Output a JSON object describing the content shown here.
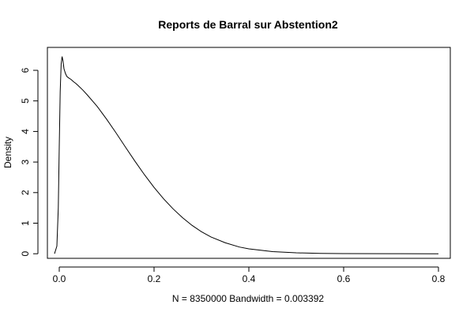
{
  "chart_data": {
    "type": "line",
    "title": "Reports de Barral sur Abstention2",
    "xlabel": "N = 8350000   Bandwidth = 0.003392",
    "ylabel": "Density",
    "xlim": [
      -0.025,
      0.825
    ],
    "ylim": [
      -0.15,
      6.75
    ],
    "x_ticks": [
      0.0,
      0.2,
      0.4,
      0.6,
      0.8
    ],
    "x_tick_labels": [
      "0.0",
      "0.2",
      "0.4",
      "0.6",
      "0.8"
    ],
    "y_ticks": [
      0,
      1,
      2,
      3,
      4,
      5,
      6
    ],
    "y_tick_labels": [
      "0",
      "1",
      "2",
      "3",
      "4",
      "5",
      "6"
    ],
    "grid": false,
    "series": [
      {
        "x": [
          -0.01,
          -0.005,
          -0.002,
          0.0,
          0.002,
          0.004,
          0.006,
          0.008,
          0.01,
          0.013,
          0.016,
          0.02,
          0.025,
          0.03,
          0.035,
          0.04,
          0.05,
          0.06,
          0.08,
          0.1,
          0.12,
          0.14,
          0.16,
          0.18,
          0.2,
          0.22,
          0.24,
          0.26,
          0.28,
          0.3,
          0.32,
          0.35,
          0.38,
          0.4,
          0.45,
          0.5,
          0.55,
          0.6,
          0.7,
          0.8
        ],
        "y": [
          0.0,
          0.25,
          1.5,
          3.5,
          5.3,
          6.2,
          6.45,
          6.3,
          6.05,
          5.9,
          5.8,
          5.75,
          5.7,
          5.63,
          5.57,
          5.5,
          5.35,
          5.18,
          4.82,
          4.4,
          3.95,
          3.48,
          3.02,
          2.58,
          2.17,
          1.8,
          1.47,
          1.18,
          0.93,
          0.72,
          0.55,
          0.36,
          0.22,
          0.16,
          0.07,
          0.03,
          0.01,
          0.004,
          0.001,
          0.0
        ]
      }
    ]
  }
}
